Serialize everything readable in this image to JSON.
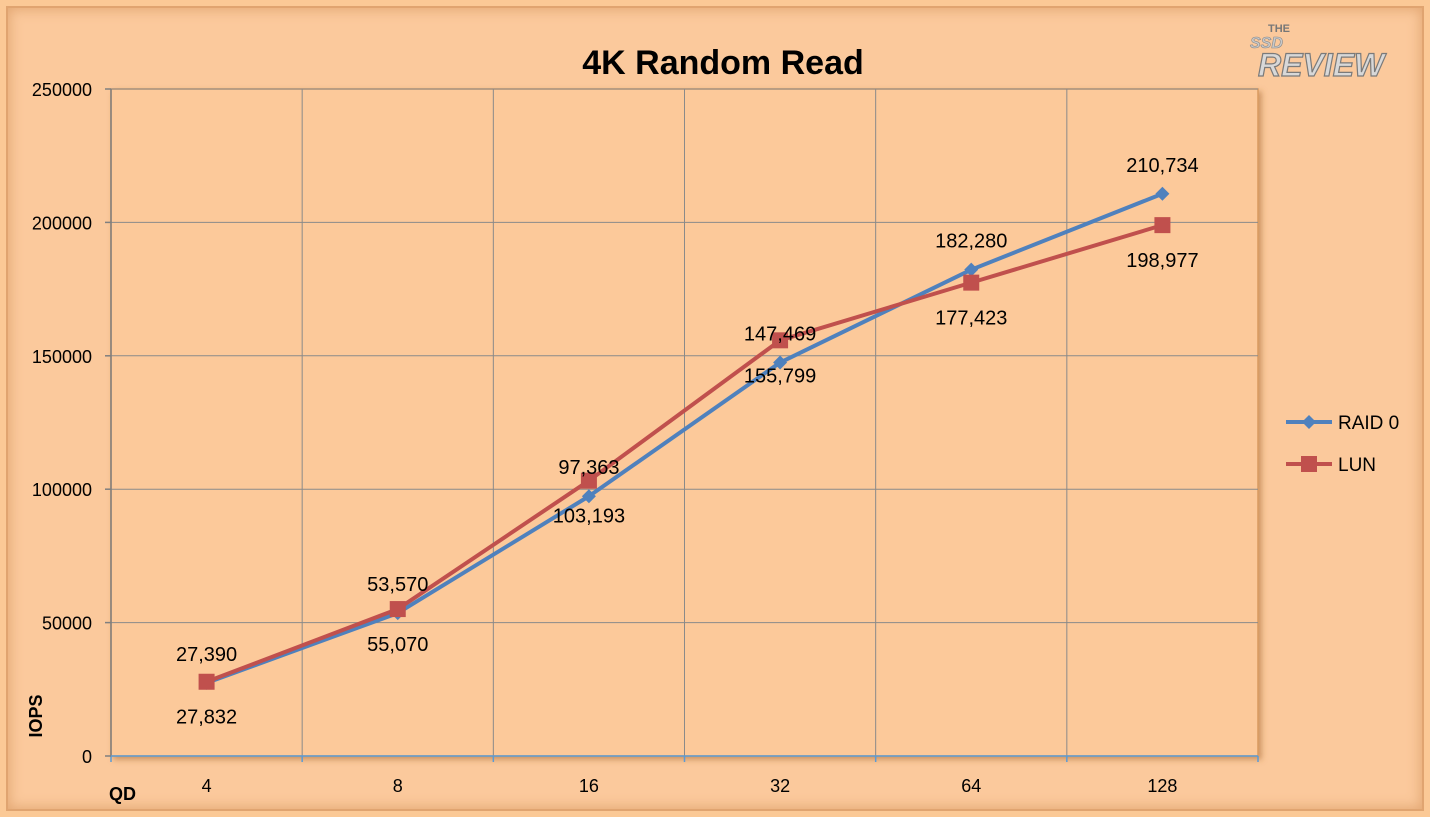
{
  "logo": {
    "the": "THE",
    "ssd": "SSD",
    "review": "REVIEW"
  },
  "chart_data": {
    "type": "line",
    "title": "4K Random Read",
    "xlabel": "QD",
    "ylabel": "IOPS",
    "categories": [
      "4",
      "8",
      "16",
      "32",
      "64",
      "128"
    ],
    "ylim": [
      0,
      250000
    ],
    "yticks": [
      "0",
      "50000",
      "100000",
      "150000",
      "200000",
      "250000"
    ],
    "grid": true,
    "legend": "right",
    "series": [
      {
        "name": "RAID 0",
        "color": "#4f81bd",
        "marker": "diamond",
        "values": [
          27390,
          53570,
          97363,
          147469,
          182280,
          210734
        ],
        "labels": [
          "27,390",
          "53,570",
          "97,363",
          "147,469",
          "182,280",
          "210,734"
        ],
        "label_pos": [
          "above",
          "above",
          "above",
          "above",
          "above",
          "above"
        ]
      },
      {
        "name": "LUN",
        "color": "#c0504d",
        "marker": "square",
        "values": [
          27832,
          55070,
          103193,
          155799,
          177423,
          198977
        ],
        "labels": [
          "27,832",
          "55,070",
          "103,193",
          "155,799",
          "177,423",
          "198,977"
        ],
        "label_pos": [
          "below",
          "below",
          "below",
          "below",
          "below",
          "below"
        ]
      }
    ]
  }
}
